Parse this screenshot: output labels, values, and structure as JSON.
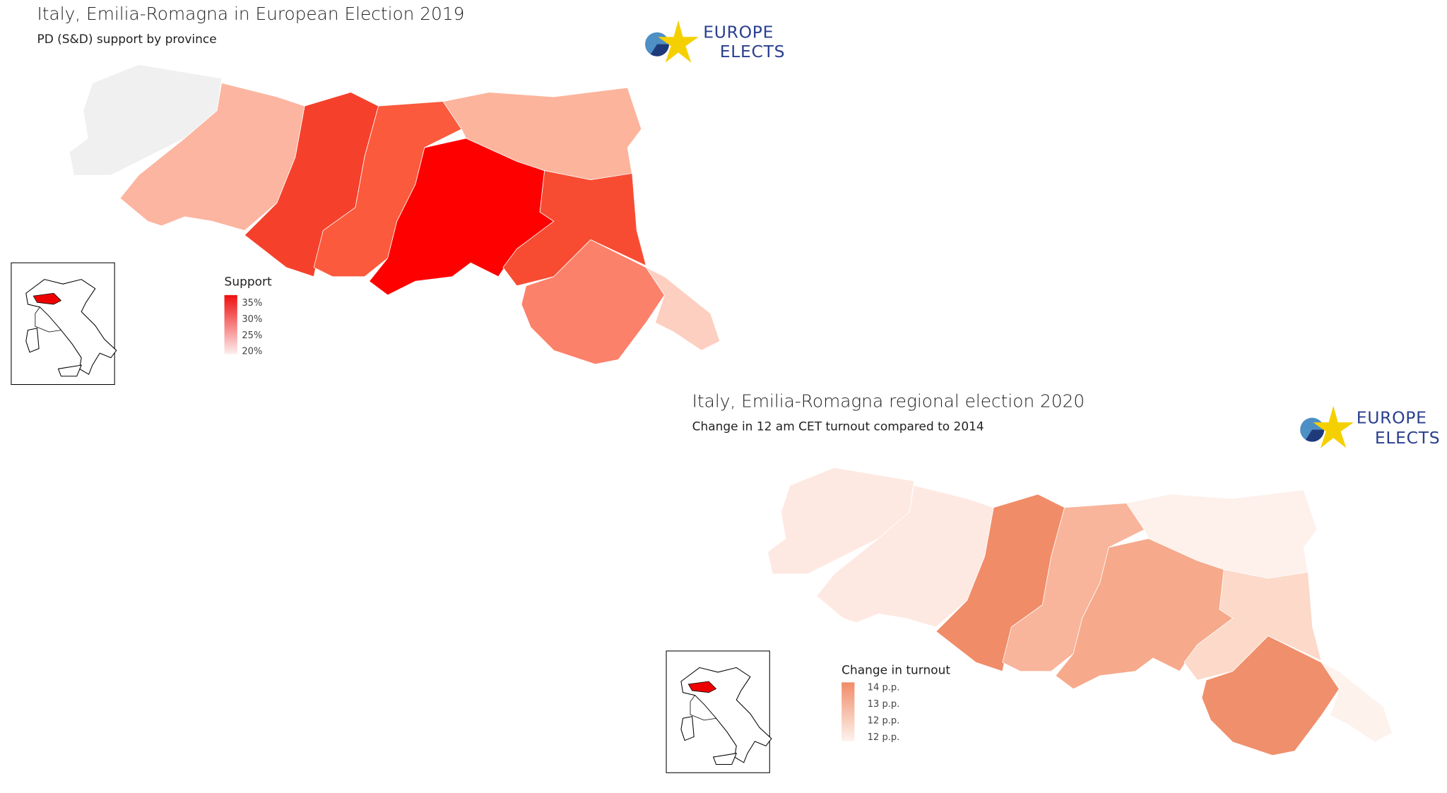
{
  "maps": [
    {
      "title": "Italy, Emilia-Romagna in European Election 2019",
      "subtitle": "PD (S&D) support by province",
      "logo": [
        "EUROPE",
        "ELECTS"
      ],
      "legend": {
        "title": "Support",
        "labels": [
          "35%",
          "30%",
          "25%",
          "20%"
        ]
      }
    },
    {
      "title": "Italy, Emilia-Romagna regional election 2020",
      "subtitle": "Change in 12 am CET turnout compared to 2014",
      "logo": [
        "EUROPE",
        "ELECTS"
      ],
      "legend": {
        "title": "Change in turnout",
        "labels": [
          "14 p.p.",
          "13 p.p.",
          "12 p.p.",
          "12 p.p."
        ]
      }
    }
  ]
}
